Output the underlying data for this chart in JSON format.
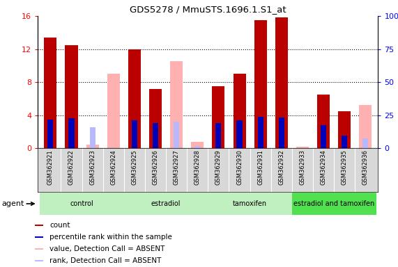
{
  "title": "GDS5278 / MmuSTS.1696.1.S1_at",
  "samples": [
    "GSM362921",
    "GSM362922",
    "GSM362923",
    "GSM362924",
    "GSM362925",
    "GSM362926",
    "GSM362927",
    "GSM362928",
    "GSM362929",
    "GSM362930",
    "GSM362931",
    "GSM362932",
    "GSM362933",
    "GSM362934",
    "GSM362935",
    "GSM362936"
  ],
  "red_bars": [
    13.4,
    12.5,
    0,
    0,
    12.0,
    7.2,
    0,
    0,
    7.5,
    9.0,
    15.5,
    15.8,
    0,
    6.5,
    4.5,
    0
  ],
  "pink_bars": [
    0,
    0,
    0.4,
    9.0,
    0,
    0,
    10.5,
    0.8,
    0,
    0,
    0,
    0,
    0.2,
    0,
    0,
    5.2
  ],
  "blue_bars": [
    3.5,
    3.6,
    0,
    0,
    3.4,
    3.0,
    0,
    0,
    3.0,
    3.4,
    3.8,
    3.7,
    0,
    2.8,
    1.5,
    0
  ],
  "lightblue_bars": [
    0,
    0,
    2.5,
    0,
    0,
    0,
    3.2,
    0.3,
    0,
    0,
    0,
    0,
    0,
    0,
    0,
    1.2
  ],
  "group_labels": [
    "control",
    "estradiol",
    "tamoxifen",
    "estradiol and tamoxifen"
  ],
  "group_ranges": [
    [
      0,
      4
    ],
    [
      4,
      8
    ],
    [
      8,
      12
    ],
    [
      12,
      16
    ]
  ],
  "group_colors": [
    "#c0f0c0",
    "#c0f0c0",
    "#c0f0c0",
    "#50e050"
  ],
  "ylim_left": [
    0,
    16
  ],
  "ylim_right": [
    0,
    100
  ],
  "yticks_left": [
    0,
    4,
    8,
    12,
    16
  ],
  "yticks_right": [
    0,
    25,
    50,
    75,
    100
  ],
  "ytick_labels_right": [
    "0",
    "25",
    "50",
    "75",
    "100%"
  ],
  "color_red": "#bb0000",
  "color_pink": "#ffb0b0",
  "color_blue": "#0000bb",
  "color_lightblue": "#b8b8ff",
  "bar_width": 0.6,
  "agent_label": "agent"
}
